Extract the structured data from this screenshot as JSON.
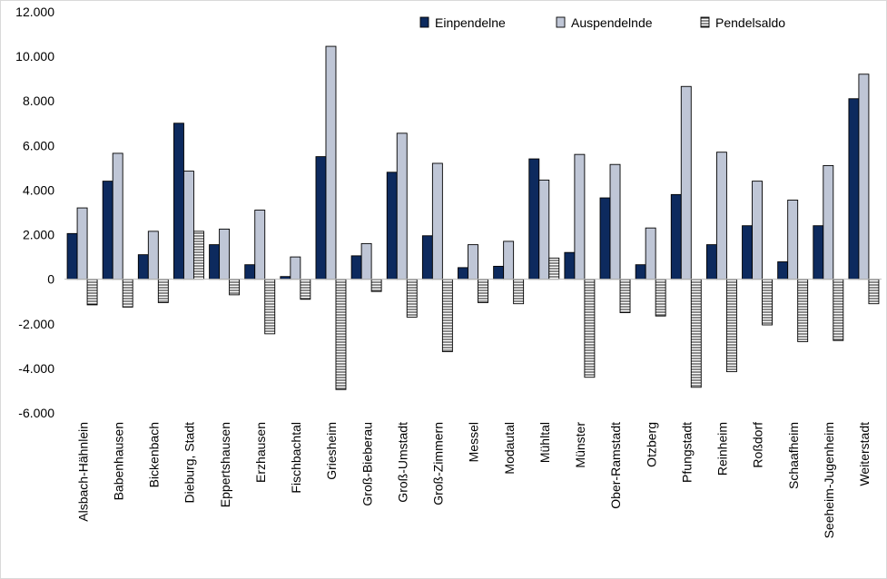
{
  "chart_data": {
    "type": "bar",
    "title": "",
    "xlabel": "",
    "ylabel": "",
    "ylim": [
      -6000,
      12000
    ],
    "yticks": [
      -6000,
      -4000,
      -2000,
      0,
      2000,
      4000,
      6000,
      8000,
      10000,
      12000
    ],
    "ytick_labels": [
      "-6.000",
      "-4.000",
      "-2.000",
      "0",
      "2.000",
      "4.000",
      "6.000",
      "8.000",
      "10.000",
      "12.000"
    ],
    "grid": false,
    "legend_position": "top-right",
    "categories": [
      "Alsbach-Hähnlein",
      "Babenhausen",
      "Bickenbach",
      "Dieburg, Stadt",
      "Eppertshausen",
      "Erzhausen",
      "Fischbachtal",
      "Griesheim",
      "Groß-Bieberau",
      "Groß-Umstadt",
      "Groß-Zimmern",
      "Messel",
      "Modautal",
      "Mühltal",
      "Münster",
      "Ober-Ramstadt",
      "Otzberg",
      "Pfungstadt",
      "Reinheim",
      "Roßdorf",
      "Schaafheim",
      "Seeheim-Jugenheim",
      "Weiterstadt"
    ],
    "series": [
      {
        "name": "Einpendelne",
        "color": "#0d2a5e",
        "pattern": "solid",
        "values": [
          2050,
          4400,
          1100,
          7000,
          1550,
          650,
          120,
          5500,
          1050,
          4800,
          1950,
          520,
          580,
          5400,
          1200,
          3650,
          650,
          3800,
          1550,
          2400,
          780,
          2400,
          8100
        ]
      },
      {
        "name": "Auspendelnde",
        "color": "#bfc6d6",
        "pattern": "solid",
        "values": [
          3200,
          5650,
          2150,
          4850,
          2250,
          3100,
          1000,
          10450,
          1600,
          6550,
          5200,
          1550,
          1700,
          4450,
          5600,
          5150,
          2300,
          8650,
          5700,
          4400,
          3550,
          5100,
          9200
        ]
      },
      {
        "name": "Pendelsaldo",
        "color": "#ffffff",
        "pattern": "horizontal-lines",
        "values": [
          -1150,
          -1250,
          -1050,
          2150,
          -700,
          -2450,
          -900,
          -4950,
          -550,
          -1700,
          -3250,
          -1050,
          -1100,
          950,
          -4400,
          -1500,
          -1650,
          -4850,
          -4150,
          -2050,
          -2800,
          -2750,
          -1100
        ]
      }
    ]
  }
}
